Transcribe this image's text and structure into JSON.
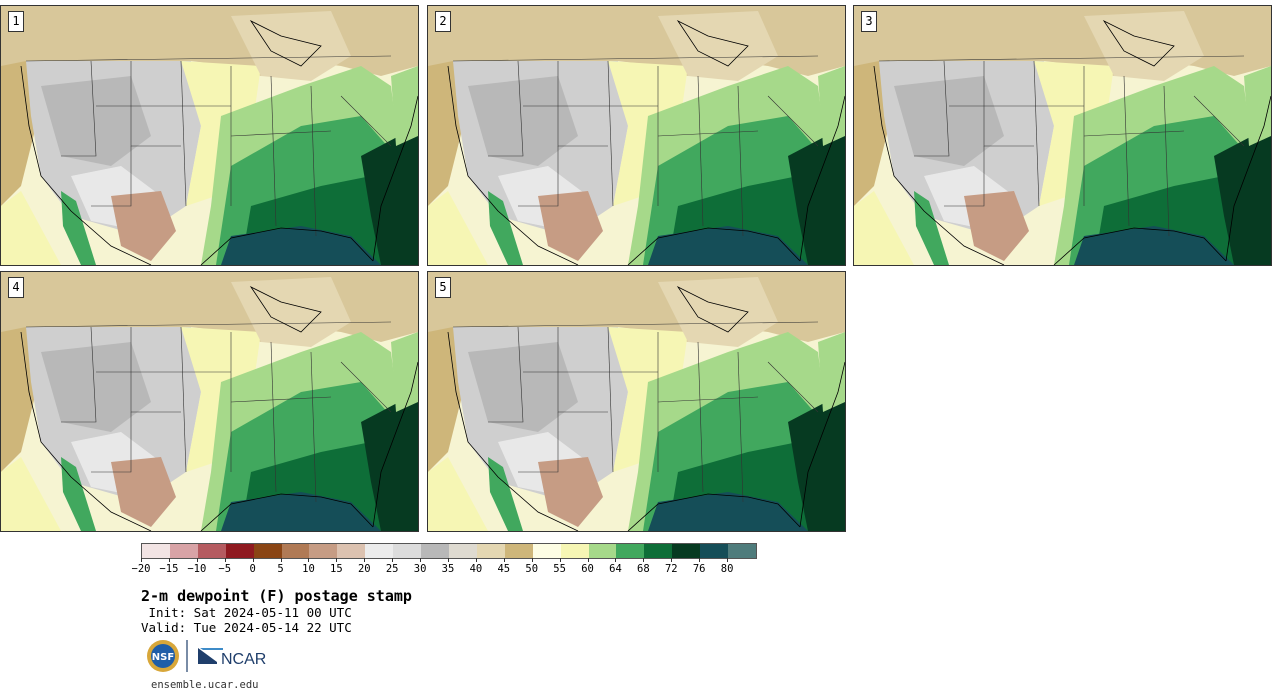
{
  "panels": [
    {
      "number": "1"
    },
    {
      "number": "2"
    },
    {
      "number": "3"
    },
    {
      "number": "4"
    },
    {
      "number": "5"
    }
  ],
  "colorbar": {
    "colors": [
      "#f2e4e4",
      "#d8a3a6",
      "#b55b60",
      "#8f1a20",
      "#8a4514",
      "#b07a55",
      "#c69c84",
      "#dcc2b0",
      "#ececec",
      "#dcdcdc",
      "#b8b8b8",
      "#dedad0",
      "#e4d7b2",
      "#ceb67a",
      "#fdfde4",
      "#f6f6b4",
      "#a6d98a",
      "#41a85e",
      "#0e6e38",
      "#063a21",
      "#154e58",
      "#4f7c7c"
    ],
    "labels": [
      "−20",
      "−15",
      "−10",
      "−5",
      "0",
      "5",
      "10",
      "15",
      "20",
      "25",
      "30",
      "35",
      "40",
      "45",
      "50",
      "55",
      "60",
      "64",
      "68",
      "72",
      "76",
      "80"
    ]
  },
  "title": "2-m dewpoint (F) postage stamp",
  "init": " Init: Sat 2024-05-11 00 UTC",
  "valid": "Valid: Tue 2024-05-14 22 UTC",
  "logos": {
    "nsf": "NSF",
    "ncar": "NCAR"
  },
  "url": "ensemble.ucar.edu"
}
